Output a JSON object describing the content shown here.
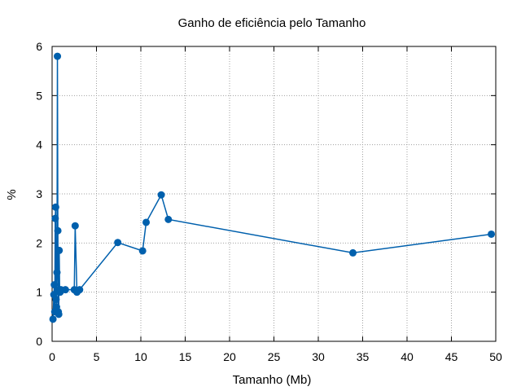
{
  "chart_data": {
    "type": "line",
    "title": "Ganho de eficiência pelo Tamanho",
    "xlabel": "Tamanho (Mb)",
    "ylabel": "%",
    "xlim": [
      0,
      50
    ],
    "ylim": [
      0,
      6
    ],
    "xticks": [
      0,
      5,
      10,
      15,
      20,
      25,
      30,
      35,
      40,
      45,
      50
    ],
    "yticks": [
      0,
      1,
      2,
      3,
      4,
      5,
      6
    ],
    "grid": true,
    "line_color": "#0060ad",
    "series": [
      {
        "name": "",
        "x": [
          0.1,
          0.2,
          0.25,
          0.3,
          0.35,
          0.4,
          0.45,
          0.5,
          0.55,
          0.6,
          0.65,
          0.7,
          0.75,
          0.8,
          0.85,
          0.9,
          1.0,
          1.5,
          2.5,
          2.6,
          2.8,
          3.1,
          7.4,
          10.2,
          10.6,
          12.3,
          13.1,
          33.9,
          49.5
        ],
        "y": [
          0.45,
          0.95,
          1.15,
          0.6,
          2.5,
          2.73,
          0.85,
          0.7,
          1.4,
          5.8,
          2.25,
          0.6,
          0.55,
          1.85,
          1.05,
          1.0,
          1.05,
          1.05,
          1.05,
          2.35,
          1.0,
          1.05,
          2.01,
          1.84,
          2.42,
          2.98,
          2.48,
          1.8,
          2.18
        ]
      }
    ]
  }
}
